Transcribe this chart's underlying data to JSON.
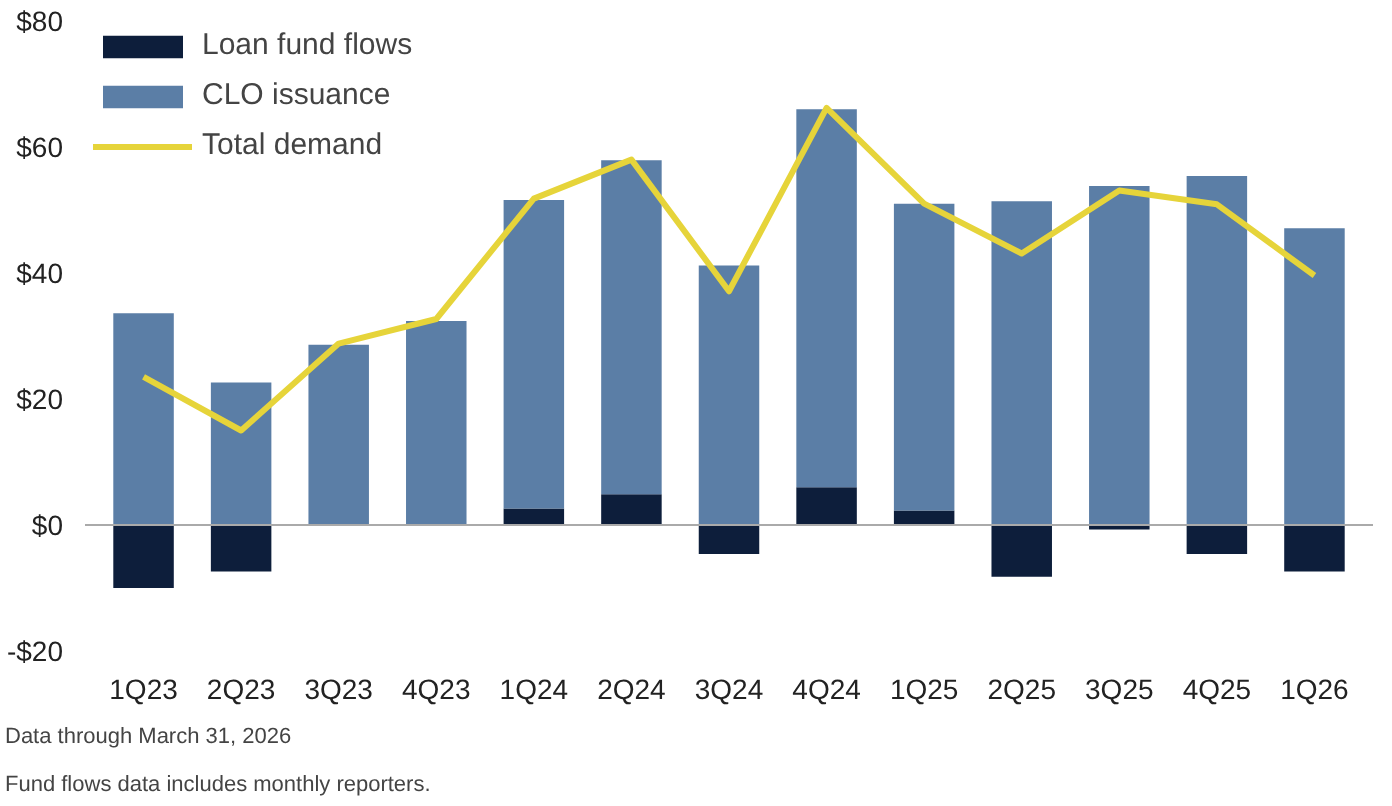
{
  "chart_data": {
    "type": "bar",
    "stacked": true,
    "categories": [
      "1Q23",
      "2Q23",
      "3Q23",
      "4Q23",
      "1Q24",
      "2Q24",
      "3Q24",
      "4Q24",
      "1Q25",
      "2Q25",
      "3Q25",
      "4Q25",
      "1Q26"
    ],
    "series": [
      {
        "name": "Loan fund flows",
        "color": "#0d1e3b",
        "values": [
          -10,
          -7.4,
          0,
          0,
          2.6,
          4.9,
          -4.6,
          6,
          2.3,
          -8.2,
          -0.7,
          -4.6,
          -7.4
        ]
      },
      {
        "name": "CLO issuance",
        "color": "#5b7ea6",
        "values": [
          33.6,
          22.6,
          28.6,
          32.4,
          49,
          53,
          41.2,
          60,
          48.7,
          51.4,
          53.8,
          55.4,
          47.1
        ]
      },
      {
        "name": "Total demand",
        "type": "line",
        "color": "#e6d43a",
        "values": [
          23.5,
          15,
          28.8,
          32.7,
          51.8,
          58,
          37.1,
          66.2,
          51,
          43.1,
          53.1,
          50.9,
          39.6
        ]
      }
    ],
    "ref_lines": [
      {
        "axis": "y",
        "value": 0,
        "color": "#aaaaaa"
      }
    ],
    "ylim": [
      -20,
      80
    ],
    "yticks": [
      {
        "value": -20,
        "label": "-$20"
      },
      {
        "value": 0,
        "label": "$0"
      },
      {
        "value": 20,
        "label": "$20"
      },
      {
        "value": 40,
        "label": "$40"
      },
      {
        "value": 60,
        "label": "$60"
      },
      {
        "value": 80,
        "label": "$80"
      }
    ],
    "grid": false,
    "legend": "top left",
    "annotations": [
      "Data through March 31, 2026",
      "Fund flows data includes monthly reporters."
    ]
  }
}
